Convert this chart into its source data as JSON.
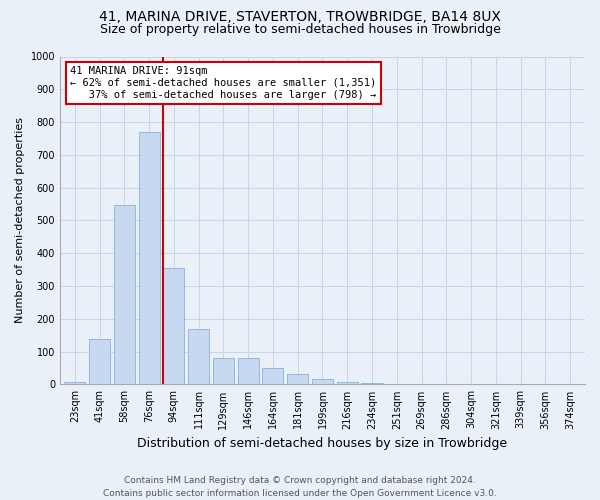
{
  "title": "41, MARINA DRIVE, STAVERTON, TROWBRIDGE, BA14 8UX",
  "subtitle": "Size of property relative to semi-detached houses in Trowbridge",
  "xlabel": "Distribution of semi-detached houses by size in Trowbridge",
  "ylabel": "Number of semi-detached properties",
  "bar_labels": [
    "23sqm",
    "41sqm",
    "58sqm",
    "76sqm",
    "94sqm",
    "111sqm",
    "129sqm",
    "146sqm",
    "164sqm",
    "181sqm",
    "199sqm",
    "216sqm",
    "234sqm",
    "251sqm",
    "269sqm",
    "286sqm",
    "304sqm",
    "321sqm",
    "339sqm",
    "356sqm",
    "374sqm"
  ],
  "bar_values": [
    8,
    140,
    548,
    770,
    355,
    170,
    80,
    80,
    50,
    33,
    17,
    8,
    5,
    0,
    0,
    0,
    0,
    0,
    0,
    0,
    0
  ],
  "bar_color": "#c6d9f0",
  "bar_edge_color": "#8ab0d8",
  "annotation_text": "41 MARINA DRIVE: 91sqm\n← 62% of semi-detached houses are smaller (1,351)\n   37% of semi-detached houses are larger (798) →",
  "annotation_box_color": "#ffffff",
  "annotation_box_edge": "#cc0000",
  "vline_color": "#cc0000",
  "ylim": [
    0,
    1000
  ],
  "yticks": [
    0,
    100,
    200,
    300,
    400,
    500,
    600,
    700,
    800,
    900,
    1000
  ],
  "footer": "Contains HM Land Registry data © Crown copyright and database right 2024.\nContains public sector information licensed under the Open Government Licence v3.0.",
  "bg_color": "#eaf0f8",
  "plot_bg_color": "#eaf0f8",
  "title_fontsize": 10,
  "subtitle_fontsize": 9,
  "xlabel_fontsize": 9,
  "ylabel_fontsize": 8,
  "tick_fontsize": 7,
  "footer_fontsize": 6.5,
  "annotation_fontsize": 7.5,
  "vline_bin_index": 4
}
